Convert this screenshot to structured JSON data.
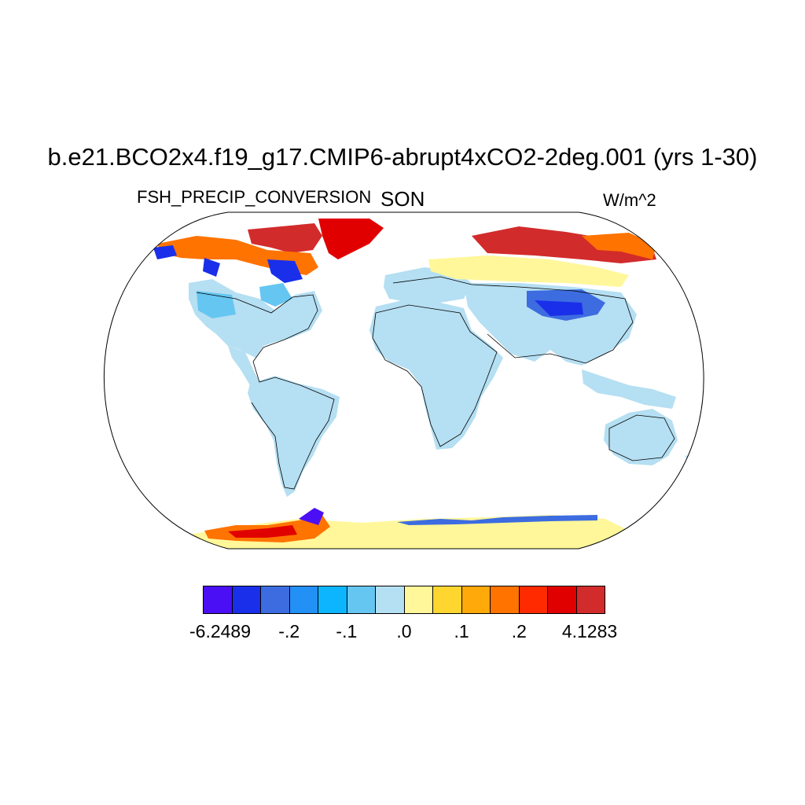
{
  "title": "b.e21.BCO2x4.f19_g17.CMIP6-abrupt4xCO2-2deg.001 (yrs 1-30)",
  "variable": "FSH_PRECIP_CONVERSION",
  "season": "SON",
  "units": "W/m^2",
  "colorbar": {
    "colors": [
      "#4b0ff5",
      "#1a2fea",
      "#3d6ce0",
      "#2390f5",
      "#0db5ff",
      "#66c6f2",
      "#b5dff2",
      "#fff79a",
      "#ffd530",
      "#ffa90a",
      "#ff7300",
      "#ff2a00",
      "#e00000",
      "#d22b2b"
    ],
    "tick_labels": [
      "-6.2489",
      "-.2",
      "-.1",
      ".0",
      ".1",
      ".2",
      "4.1283"
    ]
  }
}
